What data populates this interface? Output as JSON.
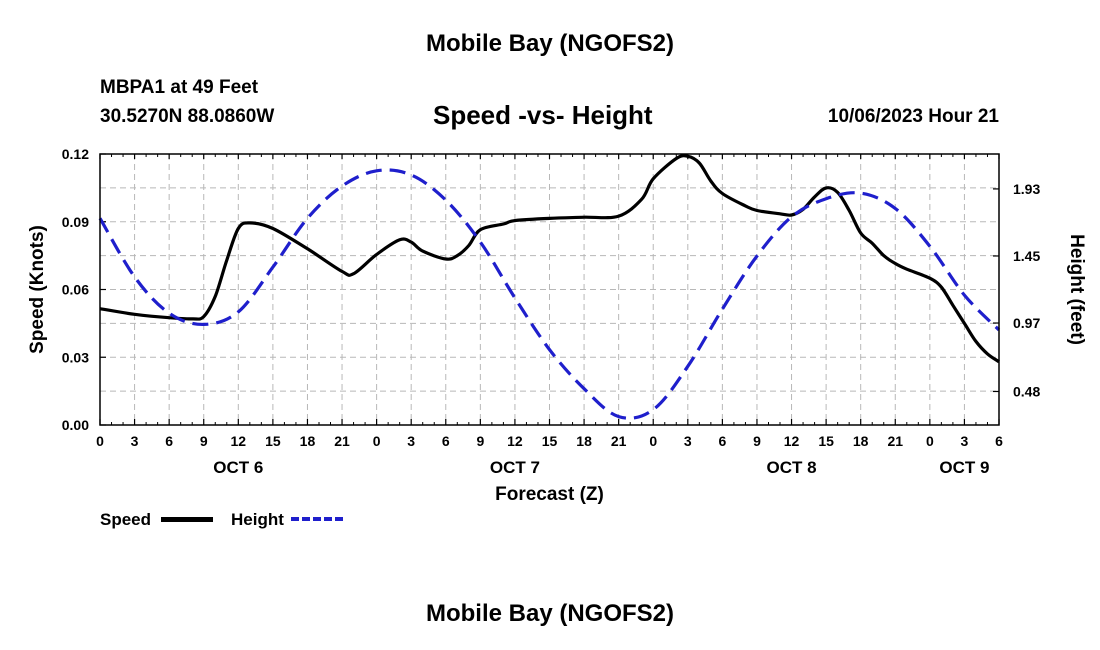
{
  "header": {
    "title": "Mobile Bay (NGOFS2)",
    "station": "MBPA1 at 49 Feet",
    "coords": "30.5270N  88.0860W",
    "subtitle": "Speed -vs- Height",
    "datetime": "10/06/2023 Hour 21",
    "footer_title": "Mobile Bay (NGOFS2)"
  },
  "legend": {
    "speed_label": "Speed",
    "height_label": "Height"
  },
  "colors": {
    "speed": "#000000",
    "height": "#1f1fcc",
    "grid": "#b8b8b8"
  },
  "chart_data": {
    "type": "line",
    "title": "Speed -vs- Height",
    "xlabel": "Forecast (Z)",
    "ylabel": "Speed (Knots)",
    "y2label": "Height (feet)",
    "xlim": [
      0,
      78
    ],
    "ylim": [
      0,
      0.12
    ],
    "y2lim": [
      0.24,
      2.18
    ],
    "x_ticks": [
      0,
      3,
      6,
      9,
      12,
      15,
      18,
      21,
      24,
      27,
      30,
      33,
      36,
      39,
      42,
      45,
      48,
      51,
      54,
      57,
      60,
      63,
      66,
      69,
      72,
      75,
      78
    ],
    "x_tick_labels": [
      "0",
      "3",
      "6",
      "9",
      "12",
      "15",
      "18",
      "21",
      "0",
      "3",
      "6",
      "9",
      "12",
      "15",
      "18",
      "21",
      "0",
      "3",
      "6",
      "9",
      "12",
      "15",
      "18",
      "21",
      "0",
      "3",
      "6"
    ],
    "y_ticks": [
      0,
      0.03,
      0.06,
      0.09,
      0.12
    ],
    "y_tick_labels": [
      "0.00",
      "0.03",
      "0.06",
      "0.09",
      "0.12"
    ],
    "y2_ticks": [
      0.48,
      0.97,
      1.45,
      1.93
    ],
    "y2_tick_labels": [
      "0.48",
      "0.97",
      "1.45",
      "1.93"
    ],
    "date_labels": [
      {
        "x": 12,
        "label": "OCT 6"
      },
      {
        "x": 36,
        "label": "OCT 7"
      },
      {
        "x": 60,
        "label": "OCT 8"
      },
      {
        "x": 75,
        "label": "OCT 9"
      }
    ],
    "series": [
      {
        "name": "Speed",
        "axis": "left",
        "style": "solid",
        "x": [
          0,
          3,
          6,
          8,
          9,
          10,
          11,
          12,
          13,
          15,
          18,
          21,
          22,
          24,
          26,
          27,
          28,
          30,
          31,
          32,
          33,
          35,
          36,
          39,
          42,
          45,
          47,
          48,
          50,
          51,
          52,
          53,
          54,
          56,
          57,
          59,
          60,
          61,
          62,
          63,
          64,
          65,
          66,
          67,
          68,
          69,
          70,
          72,
          73,
          74,
          75,
          76,
          77,
          78
        ],
        "y": [
          0.0515,
          0.049,
          0.0475,
          0.047,
          0.048,
          0.057,
          0.073,
          0.087,
          0.0895,
          0.087,
          0.078,
          0.068,
          0.067,
          0.0755,
          0.082,
          0.081,
          0.077,
          0.0735,
          0.075,
          0.0795,
          0.0865,
          0.089,
          0.0905,
          0.0915,
          0.092,
          0.0925,
          0.1,
          0.109,
          0.118,
          0.119,
          0.116,
          0.108,
          0.1025,
          0.097,
          0.095,
          0.0935,
          0.093,
          0.0955,
          0.101,
          0.105,
          0.103,
          0.095,
          0.085,
          0.0805,
          0.075,
          0.0715,
          0.069,
          0.065,
          0.061,
          0.053,
          0.045,
          0.037,
          0.0315,
          0.028
        ]
      },
      {
        "name": "Height",
        "axis": "right",
        "style": "dashed",
        "x": [
          0,
          3,
          6,
          9,
          12,
          15,
          18,
          21,
          24,
          27,
          30,
          33,
          36,
          39,
          42,
          45,
          48,
          51,
          54,
          57,
          60,
          63,
          66,
          69,
          72,
          75,
          78
        ],
        "y": [
          1.72,
          1.3,
          1.04,
          0.96,
          1.05,
          1.37,
          1.72,
          1.95,
          2.06,
          2.03,
          1.85,
          1.55,
          1.15,
          0.78,
          0.5,
          0.3,
          0.35,
          0.66,
          1.07,
          1.45,
          1.73,
          1.86,
          1.9,
          1.79,
          1.52,
          1.17,
          0.92
        ]
      }
    ]
  }
}
